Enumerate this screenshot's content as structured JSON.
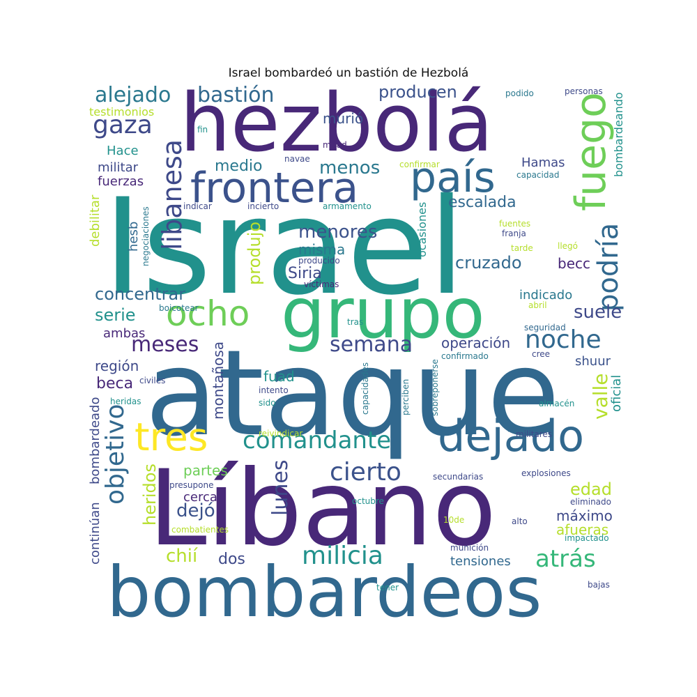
{
  "title": "Israel bombardeó un bastión de Hezbolá",
  "words": [
    {
      "text": "Israel",
      "color": "#21918c"
    },
    {
      "text": "ataque",
      "color": "#31688e"
    },
    {
      "text": "Líbano",
      "color": "#482878"
    },
    {
      "text": "hezbolá",
      "color": "#482878"
    },
    {
      "text": "bombardeos",
      "color": "#31688e"
    },
    {
      "text": "grupo",
      "color": "#35b779"
    },
    {
      "text": "frontera",
      "color": "#3b528b"
    },
    {
      "text": "país",
      "color": "#31688e"
    },
    {
      "text": "dejado",
      "color": "#31688e"
    },
    {
      "text": "tres",
      "color": "#fde725"
    },
    {
      "text": "ocho",
      "color": "#6ece58"
    },
    {
      "text": "fuego",
      "color": "#6ece58"
    },
    {
      "text": "libanesa",
      "color": "#3e4989"
    },
    {
      "text": "podría",
      "color": "#31688e"
    },
    {
      "text": "objetivo",
      "color": "#31688e"
    },
    {
      "text": "comandante",
      "color": "#21918c"
    },
    {
      "text": "cierto",
      "color": "#3b528b"
    },
    {
      "text": "milicia",
      "color": "#21918c"
    },
    {
      "text": "noche",
      "color": "#31688e"
    },
    {
      "text": "semana",
      "color": "#3e4989"
    },
    {
      "text": "meses",
      "color": "#482878"
    },
    {
      "text": "gaza",
      "color": "#3e4989"
    },
    {
      "text": "alejado",
      "color": "#2a788e"
    },
    {
      "text": "bastión",
      "color": "#31688e"
    },
    {
      "text": "producen",
      "color": "#3b528b"
    },
    {
      "text": "medio",
      "color": "#2a788e"
    },
    {
      "text": "menos",
      "color": "#2a788e"
    },
    {
      "text": "murió",
      "color": "#3b528b"
    },
    {
      "text": "escalada",
      "color": "#31688e"
    },
    {
      "text": "menores",
      "color": "#3b528b"
    },
    {
      "text": "misma",
      "color": "#2a788e"
    },
    {
      "text": "cruzado",
      "color": "#31688e"
    },
    {
      "text": "Siria",
      "color": "#3e4989"
    },
    {
      "text": "produjo",
      "color": "#b5de2b"
    },
    {
      "text": "concentrar",
      "color": "#31688e"
    },
    {
      "text": "serie",
      "color": "#21918c"
    },
    {
      "text": "suele",
      "color": "#3e4989"
    },
    {
      "text": "valle",
      "color": "#b5de2b"
    },
    {
      "text": "lunes",
      "color": "#3e4989"
    },
    {
      "text": "heridos",
      "color": "#b5de2b"
    },
    {
      "text": "atrás",
      "color": "#35b779"
    },
    {
      "text": "dejó",
      "color": "#3b528b"
    },
    {
      "text": "chií",
      "color": "#b5de2b"
    },
    {
      "text": "dos",
      "color": "#3e4989"
    },
    {
      "text": "edad",
      "color": "#b5de2b"
    },
    {
      "text": "beca",
      "color": "#482878"
    },
    {
      "text": "operación",
      "color": "#3e4989"
    },
    {
      "text": "Hamas",
      "color": "#3e4989"
    },
    {
      "text": "becc",
      "color": "#482878"
    },
    {
      "text": "montañosa",
      "color": "#3e4989"
    },
    {
      "text": "ambas",
      "color": "#482878"
    },
    {
      "text": "región",
      "color": "#3e4989"
    },
    {
      "text": "partes",
      "color": "#6ece58"
    },
    {
      "text": "cerca",
      "color": "#482878"
    },
    {
      "text": "tensiones",
      "color": "#31688e"
    },
    {
      "text": "fuad",
      "color": "#21918c"
    },
    {
      "text": "máximo",
      "color": "#3e4989"
    },
    {
      "text": "afueras",
      "color": "#b5de2b"
    },
    {
      "text": "indicado",
      "color": "#2a788e"
    },
    {
      "text": "shuur",
      "color": "#3b528b"
    },
    {
      "text": "oficial",
      "color": "#21918c"
    },
    {
      "text": "militar",
      "color": "#3e4989"
    },
    {
      "text": "fuerzas",
      "color": "#482878"
    },
    {
      "text": "Hace",
      "color": "#21918c"
    },
    {
      "text": "testimonios",
      "color": "#b5de2b"
    },
    {
      "text": "debilitar",
      "color": "#b5de2b"
    },
    {
      "text": "hesb",
      "color": "#31688e"
    },
    {
      "text": "bombardeado",
      "color": "#3e4989"
    },
    {
      "text": "continúan",
      "color": "#3e4989"
    },
    {
      "text": "bombardeando",
      "color": "#21918c"
    },
    {
      "text": "ocasiones",
      "color": "#21918c"
    },
    {
      "text": "negociaciones",
      "color": "#2a788e"
    },
    {
      "text": "personas",
      "color": "#3e4989"
    },
    {
      "text": "podido",
      "color": "#2a788e"
    },
    {
      "text": "fin",
      "color": "#21918c"
    },
    {
      "text": "mitad",
      "color": "#482878"
    },
    {
      "text": "navae",
      "color": "#3e4989"
    },
    {
      "text": "confirmar",
      "color": "#b5de2b"
    },
    {
      "text": "capacidad",
      "color": "#2a788e"
    },
    {
      "text": "indicar",
      "color": "#3e4989"
    },
    {
      "text": "incierto",
      "color": "#3e4989"
    },
    {
      "text": "armamento",
      "color": "#21918c"
    },
    {
      "text": "fuentes",
      "color": "#b5de2b"
    },
    {
      "text": "franja",
      "color": "#3e4989"
    },
    {
      "text": "tarde",
      "color": "#b5de2b"
    },
    {
      "text": "llegó",
      "color": "#b5de2b"
    },
    {
      "text": "producido",
      "color": "#3e4989"
    },
    {
      "text": "víctimas",
      "color": "#482878"
    },
    {
      "text": "abril",
      "color": "#b5de2b"
    },
    {
      "text": "boicotear",
      "color": "#2a788e"
    },
    {
      "text": "seguridad",
      "color": "#31688e"
    },
    {
      "text": "tras",
      "color": "#21918c"
    },
    {
      "text": "confirmado",
      "color": "#2a788e"
    },
    {
      "text": "cree",
      "color": "#3e4989"
    },
    {
      "text": "civiles",
      "color": "#3e4989"
    },
    {
      "text": "heridas",
      "color": "#21918c"
    },
    {
      "text": "intento",
      "color": "#3e4989"
    },
    {
      "text": "sido",
      "color": "#21918c"
    },
    {
      "text": "capacidades",
      "color": "#2a788e"
    },
    {
      "text": "perciben",
      "color": "#2a788e"
    },
    {
      "text": "sobreponerse",
      "color": "#2a788e"
    },
    {
      "text": "almacén",
      "color": "#21918c"
    },
    {
      "text": "reivindicar",
      "color": "#b5de2b"
    },
    {
      "text": "militares",
      "color": "#3e4989"
    },
    {
      "text": "presupone",
      "color": "#3e4989"
    },
    {
      "text": "secundarias",
      "color": "#3e4989"
    },
    {
      "text": "explosiones",
      "color": "#3e4989"
    },
    {
      "text": "octubre",
      "color": "#21918c"
    },
    {
      "text": "eliminado",
      "color": "#3e4989"
    },
    {
      "text": "10de",
      "color": "#b5de2b"
    },
    {
      "text": "alto",
      "color": "#3e4989"
    },
    {
      "text": "combatientes",
      "color": "#b5de2b"
    },
    {
      "text": "impactado",
      "color": "#21918c"
    },
    {
      "text": "munición",
      "color": "#3e4989"
    },
    {
      "text": "bajas",
      "color": "#3e4989"
    },
    {
      "text": "tener",
      "color": "#21918c"
    }
  ]
}
